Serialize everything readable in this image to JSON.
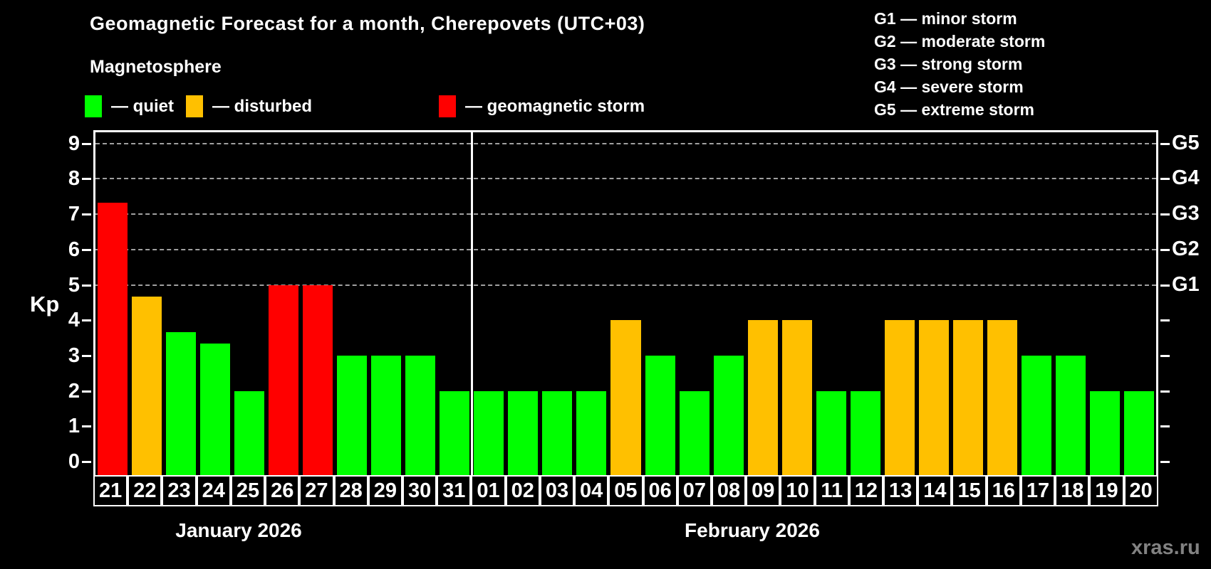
{
  "title": "Geomagnetic Forecast for a month, Cherepovets (UTC+03)",
  "subtitle": "Magnetosphere",
  "legend": [
    {
      "key": "quiet",
      "label": "— quiet",
      "color": "#00ff00"
    },
    {
      "key": "disturbed",
      "label": "— disturbed",
      "color": "#ffc000"
    },
    {
      "key": "storm",
      "label": "— geomagnetic storm",
      "color": "#ff0000"
    }
  ],
  "g_legend": [
    "G1 — minor storm",
    "G2 — moderate storm",
    "G3 — strong storm",
    "G4 — severe storm",
    "G5 — extreme storm"
  ],
  "months": [
    {
      "label": "January 2026"
    },
    {
      "label": "February 2026"
    }
  ],
  "watermark": "xras.ru",
  "chart_data": {
    "type": "bar",
    "title": "Geomagnetic Forecast for a month, Cherepovets (UTC+03)",
    "ylabel": "Kp",
    "ylim": [
      0,
      9
    ],
    "y_ticks": [
      0,
      1,
      2,
      3,
      4,
      5,
      6,
      7,
      8,
      9
    ],
    "gridlines": [
      5,
      6,
      7,
      8,
      9
    ],
    "right_axis_labels": [
      {
        "value": 5,
        "label": "G1"
      },
      {
        "value": 6,
        "label": "G2"
      },
      {
        "value": 7,
        "label": "G3"
      },
      {
        "value": 8,
        "label": "G4"
      },
      {
        "value": 9,
        "label": "G5"
      }
    ],
    "categories": [
      "21",
      "22",
      "23",
      "24",
      "25",
      "26",
      "27",
      "28",
      "29",
      "30",
      "31",
      "01",
      "02",
      "03",
      "04",
      "05",
      "06",
      "07",
      "08",
      "09",
      "10",
      "11",
      "12",
      "13",
      "14",
      "15",
      "16",
      "17",
      "18",
      "19",
      "20"
    ],
    "values": [
      7.33,
      4.67,
      3.67,
      3.33,
      2,
      5,
      5,
      3,
      3,
      3,
      2,
      2,
      2,
      2,
      2,
      4,
      3,
      2,
      3,
      4,
      4,
      2,
      2,
      4,
      4,
      4,
      4,
      3,
      3,
      2,
      2
    ],
    "statuses": [
      "storm",
      "disturbed",
      "quiet",
      "quiet",
      "quiet",
      "storm",
      "storm",
      "quiet",
      "quiet",
      "quiet",
      "quiet",
      "quiet",
      "quiet",
      "quiet",
      "quiet",
      "disturbed",
      "quiet",
      "quiet",
      "quiet",
      "disturbed",
      "disturbed",
      "quiet",
      "quiet",
      "disturbed",
      "disturbed",
      "disturbed",
      "disturbed",
      "quiet",
      "quiet",
      "quiet",
      "quiet"
    ],
    "month_split_index": 11,
    "colors": {
      "quiet": "#00ff00",
      "disturbed": "#ffc000",
      "storm": "#ff0000"
    },
    "legend_position": "top-left",
    "grid": "dashed-horizontal-5-to-9"
  }
}
